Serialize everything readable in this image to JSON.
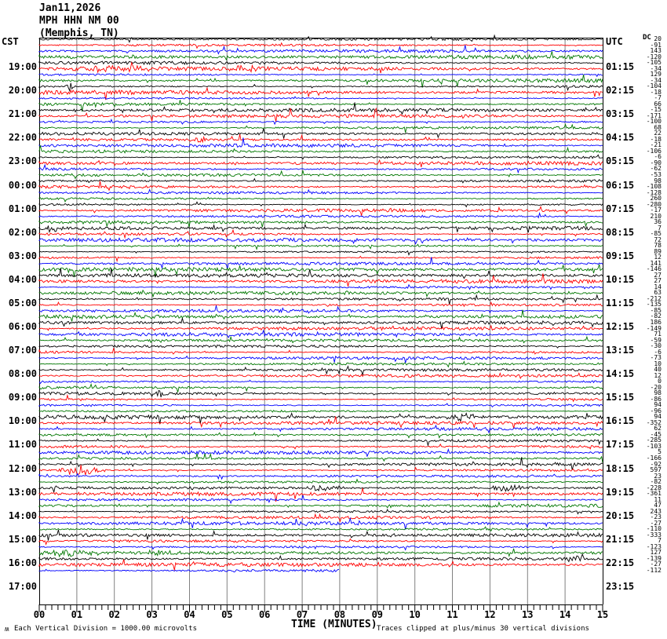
{
  "title": {
    "date": "Jan11,2026",
    "station": "MPH HHN NM 00",
    "location": "(Memphis, TN)"
  },
  "labels": {
    "left_tz": "CST",
    "right_tz": "UTC",
    "dc": "DC",
    "x_axis": "TIME (MINUTES)"
  },
  "footer": {
    "scale": "Each Vertical Division = 1000.00 microvolts",
    "clip": "Traces clipped at plus/minus 30 vertical divisions",
    "watermark": "ʍ"
  },
  "chart_data": {
    "type": "line",
    "subtype": "helicorder-seismogram",
    "station": "MPH HHN NM 00",
    "location": "Memphis, TN",
    "date": "Jan11,2026",
    "timezone_left": "CST",
    "timezone_right": "UTC",
    "minutes_per_line": 15,
    "lines_per_hour": 4,
    "hour_rows": 24,
    "x_range": [
      0,
      15
    ],
    "x_ticks": [
      "00",
      "01",
      "02",
      "03",
      "04",
      "05",
      "06",
      "07",
      "08",
      "09",
      "10",
      "11",
      "12",
      "13",
      "14",
      "15"
    ],
    "minor_ticks_per_minute": 6,
    "trace_color_cycle": [
      "#000000",
      "#ff0000",
      "#0000ff",
      "#007700"
    ],
    "grid_color": "#808080",
    "cst_hour_labels": [
      "19:00",
      "20:00",
      "21:00",
      "22:00",
      "23:00",
      "00:00",
      "01:00",
      "02:00",
      "03:00",
      "04:00",
      "05:00",
      "06:00",
      "07:00",
      "08:00",
      "09:00",
      "10:00",
      "11:00",
      "12:00",
      "13:00",
      "14:00",
      "15:00",
      "16:00",
      "17:00"
    ],
    "utc_hour_labels": [
      "01:15",
      "02:15",
      "03:15",
      "04:15",
      "05:15",
      "06:15",
      "07:15",
      "08:15",
      "09:15",
      "10:15",
      "11:15",
      "12:15",
      "13:15",
      "14:15",
      "15:15",
      "16:15",
      "17:15",
      "18:15",
      "19:15",
      "20:15",
      "21:15",
      "22:15",
      "23:15"
    ],
    "dc_offsets": [
      20,
      -91,
      143,
      -120,
      -105,
      -34,
      129,
      -34,
      -104,
      -18,
      -7,
      66,
      -15,
      -171,
      -100,
      68,
      22,
      -18,
      -21,
      -106,
      -6,
      -90,
      -62,
      -53,
      98,
      -108,
      -128,
      260,
      -280,
      -17,
      210,
      36,
      7,
      -85,
      72,
      78,
      89,
      12,
      141,
      -146,
      27,
      27,
      14,
      63,
      -212,
      -135,
      -85,
      -82,
      186,
      -149,
      71,
      -59,
      -30,
      -6,
      -73,
      10,
      40,
      12,
      0,
      -20,
      98,
      -86,
      94,
      -96,
      94,
      -352,
      62,
      -45,
      -285,
      -103,
      5,
      -166,
      -92,
      597,
      23,
      -82,
      -228,
      -361,
      11,
      47,
      243,
      -23,
      -27,
      -110,
      -333,
      7,
      -123,
      127,
      -139,
      -27,
      -112
    ],
    "partial_trace": {
      "index": 90,
      "end_minute": 8
    },
    "events": [
      {
        "trace": 5,
        "minute": 2.0,
        "width": 0.8,
        "amp": 3.5
      },
      {
        "trace": 5,
        "minute": 5.5,
        "width": 0.3,
        "amp": 2.5
      },
      {
        "trace": 8,
        "minute": 0.8,
        "width": 0.05,
        "amp": 7
      },
      {
        "trace": 17,
        "minute": 4.3,
        "width": 0.15,
        "amp": 5
      },
      {
        "trace": 32,
        "minute": 0.3,
        "width": 0.1,
        "amp": 6
      },
      {
        "trace": 60,
        "minute": 3.2,
        "width": 0.1,
        "amp": 4
      },
      {
        "trace": 64,
        "minute": 11.3,
        "width": 0.3,
        "amp": 5
      },
      {
        "trace": 73,
        "minute": 1.1,
        "width": 0.35,
        "amp": 7
      },
      {
        "trace": 76,
        "minute": 7.6,
        "width": 0.3,
        "amp": 4.5
      },
      {
        "trace": 76,
        "minute": 12.5,
        "width": 0.4,
        "amp": 4
      },
      {
        "trace": 87,
        "minute": 0.8,
        "width": 0.5,
        "amp": 4
      },
      {
        "trace": 87,
        "minute": 3.2,
        "width": 0.2,
        "amp": 4
      },
      {
        "trace": 88,
        "minute": 14.2,
        "width": 0.25,
        "amp": 5
      }
    ],
    "scale_note": "Each Vertical Division = 1000.00 microvolts",
    "clip_note": "Traces clipped at plus/minus 30 vertical divisions"
  }
}
